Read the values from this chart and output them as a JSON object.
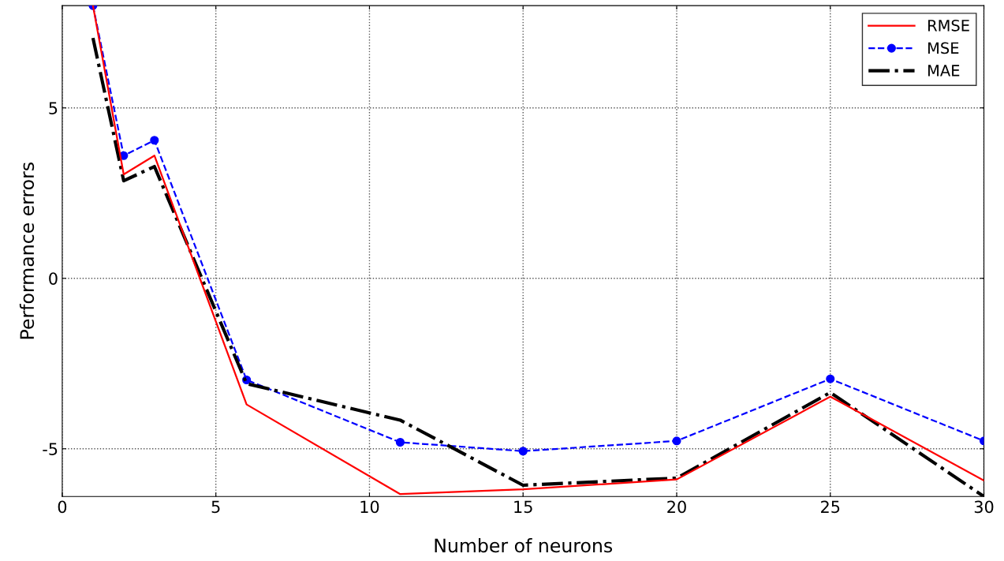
{
  "chart_data": {
    "type": "line",
    "xlabel": "Number of neurons",
    "ylabel": "Performance errors",
    "x": [
      1,
      2,
      3,
      6,
      11,
      15,
      20,
      25,
      30
    ],
    "series": [
      {
        "name": "RMSE",
        "color": "#ff0000",
        "line_style": "solid",
        "marker": "none",
        "values": [
          8.0,
          3.05,
          3.6,
          -3.7,
          -6.33,
          -6.19,
          -5.9,
          -3.47,
          -5.93
        ]
      },
      {
        "name": "MSE",
        "color": "#0000ff",
        "line_style": "dashed",
        "marker": "circle",
        "values": [
          8.0,
          3.6,
          4.05,
          -2.98,
          -4.81,
          -5.07,
          -4.77,
          -2.95,
          -4.77
        ]
      },
      {
        "name": "MAE",
        "color": "#000000",
        "line_style": "dashdot",
        "marker": "none",
        "values": [
          7.05,
          2.86,
          3.28,
          -3.09,
          -4.16,
          -6.07,
          -5.86,
          -3.35,
          -6.4
        ]
      }
    ],
    "xlim": [
      0,
      30
    ],
    "xticks": [
      0,
      5,
      10,
      15,
      20,
      25,
      30
    ],
    "ylim": [
      -6.4,
      8.0
    ],
    "yticks": [
      -5,
      0,
      5
    ],
    "grid": true,
    "legend": "top right"
  }
}
